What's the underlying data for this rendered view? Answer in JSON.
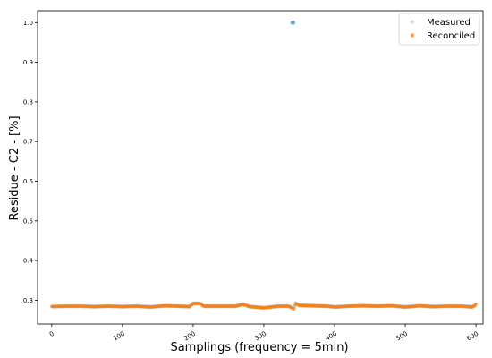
{
  "chart_data": {
    "type": "scatter",
    "title": "",
    "xlabel": "Samplings (frequency = 5min)",
    "ylabel": "Residue -  C2 - [%]",
    "xlim": [
      -20,
      610
    ],
    "ylim": [
      0.24,
      1.03
    ],
    "xticks": [
      0,
      100,
      200,
      300,
      400,
      500,
      600
    ],
    "xtick_labels": [
      "0",
      "100",
      "200",
      "300",
      "400",
      "500",
      "600"
    ],
    "yticks": [
      0.3,
      0.4,
      0.5,
      0.6,
      0.7,
      0.8,
      0.9,
      1.0
    ],
    "ytick_labels": [
      "0.3",
      "0.4",
      "0.5",
      "0.6",
      "0.7",
      "0.8",
      "0.9",
      "1.0"
    ],
    "grid": false,
    "legend_position": "top-right",
    "series": [
      {
        "name": "Measured",
        "color": "#1f77b4",
        "baseline": [
          [
            0,
            0.284
          ],
          [
            20,
            0.285
          ],
          [
            40,
            0.285
          ],
          [
            60,
            0.284
          ],
          [
            80,
            0.285
          ],
          [
            100,
            0.284
          ],
          [
            120,
            0.285
          ],
          [
            140,
            0.283
          ],
          [
            160,
            0.286
          ],
          [
            180,
            0.285
          ],
          [
            195,
            0.284
          ],
          [
            200,
            0.292
          ],
          [
            210,
            0.292
          ],
          [
            215,
            0.285
          ],
          [
            240,
            0.285
          ],
          [
            260,
            0.285
          ],
          [
            270,
            0.29
          ],
          [
            280,
            0.284
          ],
          [
            300,
            0.281
          ],
          [
            320,
            0.285
          ],
          [
            335,
            0.285
          ],
          [
            340,
            0.281
          ],
          [
            342,
            0.276
          ],
          [
            345,
            0.292
          ],
          [
            350,
            0.287
          ],
          [
            370,
            0.286
          ],
          [
            390,
            0.285
          ],
          [
            400,
            0.283
          ],
          [
            420,
            0.285
          ],
          [
            440,
            0.286
          ],
          [
            460,
            0.285
          ],
          [
            480,
            0.286
          ],
          [
            500,
            0.283
          ],
          [
            520,
            0.286
          ],
          [
            540,
            0.284
          ],
          [
            560,
            0.285
          ],
          [
            580,
            0.285
          ],
          [
            595,
            0.283
          ],
          [
            600,
            0.288
          ]
        ],
        "outliers": [
          [
            340,
            1.0
          ],
          [
            341,
            1.0
          ],
          [
            342,
            1.0
          ]
        ]
      },
      {
        "name": "Reconciled",
        "color": "#ff7f0e",
        "baseline": [
          [
            0,
            0.284
          ],
          [
            20,
            0.285
          ],
          [
            40,
            0.285
          ],
          [
            60,
            0.284
          ],
          [
            80,
            0.285
          ],
          [
            100,
            0.284
          ],
          [
            120,
            0.285
          ],
          [
            140,
            0.283
          ],
          [
            160,
            0.286
          ],
          [
            180,
            0.285
          ],
          [
            195,
            0.284
          ],
          [
            200,
            0.292
          ],
          [
            210,
            0.292
          ],
          [
            215,
            0.285
          ],
          [
            240,
            0.285
          ],
          [
            260,
            0.285
          ],
          [
            270,
            0.29
          ],
          [
            280,
            0.284
          ],
          [
            300,
            0.281
          ],
          [
            320,
            0.285
          ],
          [
            335,
            0.285
          ],
          [
            340,
            0.281
          ],
          [
            342,
            0.276
          ],
          [
            345,
            0.292
          ],
          [
            350,
            0.287
          ],
          [
            370,
            0.286
          ],
          [
            390,
            0.285
          ],
          [
            400,
            0.283
          ],
          [
            420,
            0.285
          ],
          [
            440,
            0.286
          ],
          [
            460,
            0.285
          ],
          [
            480,
            0.286
          ],
          [
            500,
            0.283
          ],
          [
            520,
            0.286
          ],
          [
            540,
            0.284
          ],
          [
            560,
            0.285
          ],
          [
            580,
            0.285
          ],
          [
            595,
            0.283
          ],
          [
            600,
            0.29
          ]
        ],
        "outliers": []
      }
    ],
    "n_samples": 600
  }
}
